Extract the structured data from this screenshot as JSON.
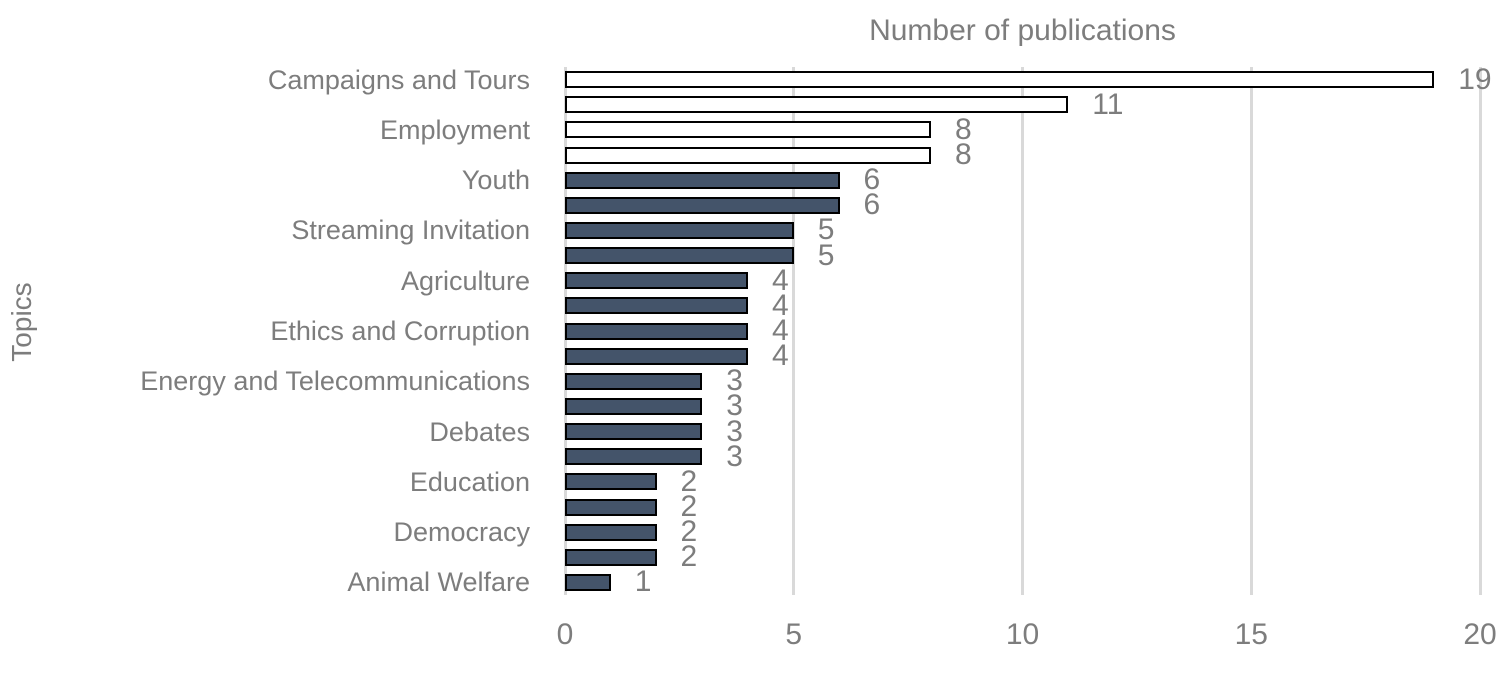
{
  "chart_data": {
    "type": "bar",
    "orientation": "horizontal",
    "title": "Number of publications",
    "xlabel": "Number of publications",
    "ylabel": "Topics",
    "xlim": [
      0,
      20
    ],
    "xticks": [
      0,
      5,
      10,
      15,
      20
    ],
    "grid": "vertical",
    "legend": "none",
    "bars": [
      {
        "label": "Campaigns and Tours",
        "value": 19,
        "series": "white"
      },
      {
        "label": "",
        "value": 11,
        "series": "white"
      },
      {
        "label": "Employment",
        "value": 8,
        "series": "white"
      },
      {
        "label": "",
        "value": 8,
        "series": "white"
      },
      {
        "label": "Youth",
        "value": 6,
        "series": "dark"
      },
      {
        "label": "",
        "value": 6,
        "series": "dark"
      },
      {
        "label": "Streaming Invitation",
        "value": 5,
        "series": "dark"
      },
      {
        "label": "",
        "value": 5,
        "series": "dark"
      },
      {
        "label": "Agriculture",
        "value": 4,
        "series": "dark"
      },
      {
        "label": "",
        "value": 4,
        "series": "dark"
      },
      {
        "label": "Ethics and Corruption",
        "value": 4,
        "series": "dark"
      },
      {
        "label": "",
        "value": 4,
        "series": "dark"
      },
      {
        "label": "Energy and Telecommunications",
        "value": 3,
        "series": "dark"
      },
      {
        "label": "",
        "value": 3,
        "series": "dark"
      },
      {
        "label": "Debates",
        "value": 3,
        "series": "dark"
      },
      {
        "label": "",
        "value": 3,
        "series": "dark"
      },
      {
        "label": "Education",
        "value": 2,
        "series": "dark"
      },
      {
        "label": "",
        "value": 2,
        "series": "dark"
      },
      {
        "label": "Democracy",
        "value": 2,
        "series": "dark"
      },
      {
        "label": "",
        "value": 2,
        "series": "dark"
      },
      {
        "label": "Animal Welfare",
        "value": 1,
        "series": "dark"
      }
    ],
    "colors": {
      "dark_fill": "#44546A",
      "white_fill": "#FFFFFF",
      "bar_border": "#000000",
      "gridline": "#D9D9D9",
      "text": "#7D7D7D"
    }
  }
}
